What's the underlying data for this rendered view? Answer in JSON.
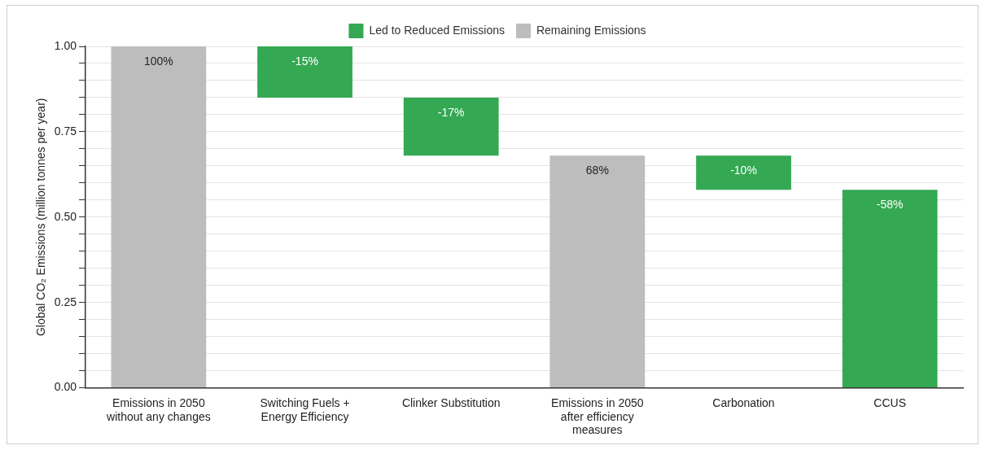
{
  "chart_data": {
    "type": "bar",
    "ylabel": "Global CO₂ Emissions (million tonnes per year)",
    "categories": [
      "Emissions in 2050 without any changes",
      "Switching Fuels + Energy Efficiency",
      "Clinker Substitution",
      "Emissions in 2050 after efficiency measures",
      "Carbonation",
      "CCUS"
    ],
    "series": [
      {
        "name": "Led to Reduced Emissions",
        "color": "#34a853",
        "values": [
          null,
          -0.15,
          -0.17,
          null,
          -0.1,
          -0.58
        ],
        "base": [
          null,
          1.0,
          0.85,
          null,
          0.68,
          0.58
        ],
        "value_labels": [
          null,
          "-15%",
          "-17%",
          null,
          "-10%",
          "-58%"
        ]
      },
      {
        "name": "Remaining Emissions",
        "color": "#bdbdbd",
        "values": [
          1.0,
          null,
          null,
          0.68,
          null,
          null
        ],
        "base": [
          0,
          null,
          null,
          0,
          null,
          null
        ],
        "value_labels": [
          "100%",
          null,
          null,
          "68%",
          null,
          null
        ]
      }
    ],
    "ylim": [
      0,
      1
    ],
    "yticks": [
      {
        "value": 0,
        "label": "0.00"
      },
      {
        "value": 0.05,
        "label": null
      },
      {
        "value": 0.1,
        "label": null
      },
      {
        "value": 0.15,
        "label": null
      },
      {
        "value": 0.2,
        "label": null
      },
      {
        "value": 0.25,
        "label": "0.25"
      },
      {
        "value": 0.3,
        "label": null
      },
      {
        "value": 0.35,
        "label": null
      },
      {
        "value": 0.4,
        "label": null
      },
      {
        "value": 0.45,
        "label": null
      },
      {
        "value": 0.5,
        "label": "0.50"
      },
      {
        "value": 0.55,
        "label": null
      },
      {
        "value": 0.6,
        "label": null
      },
      {
        "value": 0.65,
        "label": null
      },
      {
        "value": 0.7,
        "label": null
      },
      {
        "value": 0.75,
        "label": "0.75"
      },
      {
        "value": 0.8,
        "label": null
      },
      {
        "value": 0.85,
        "label": null
      },
      {
        "value": 0.9,
        "label": null
      },
      {
        "value": 0.95,
        "label": null
      },
      {
        "value": 1,
        "label": "1.00"
      }
    ],
    "grid": "y",
    "legend": "top"
  }
}
